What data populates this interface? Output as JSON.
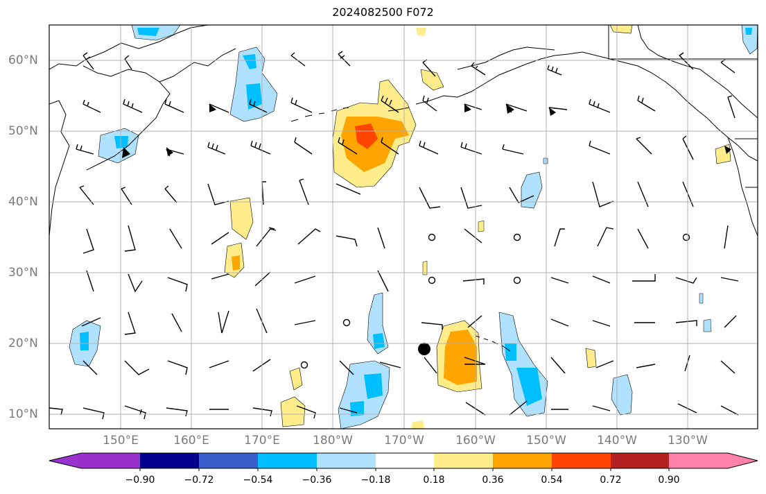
{
  "title": "2024082500 F072",
  "map": {
    "lat_labels": [
      "60°N",
      "50°N",
      "40°N",
      "30°N",
      "20°N",
      "10°N"
    ],
    "lon_labels": [
      "150°E",
      "160°E",
      "170°E",
      "180°W",
      "170°W",
      "160°W",
      "150°W",
      "140°W",
      "130°W"
    ]
  },
  "colorbar": {
    "colors": [
      "#9932cc",
      "#00008b",
      "#3a5fcd",
      "#00bfff",
      "#b0e2ff",
      "#ffffff",
      "#ffec8b",
      "#ffa500",
      "#ff4500",
      "#b22222",
      "#ff82ab"
    ],
    "tick_labels": [
      "−0.90",
      "−0.72",
      "−0.54",
      "−0.36",
      "−0.18",
      "0.18",
      "0.36",
      "0.54",
      "0.72",
      "0.90"
    ]
  },
  "colors": {
    "grid": "#b0b0b0",
    "coast": "#000000",
    "label": "#7a7a7a"
  }
}
